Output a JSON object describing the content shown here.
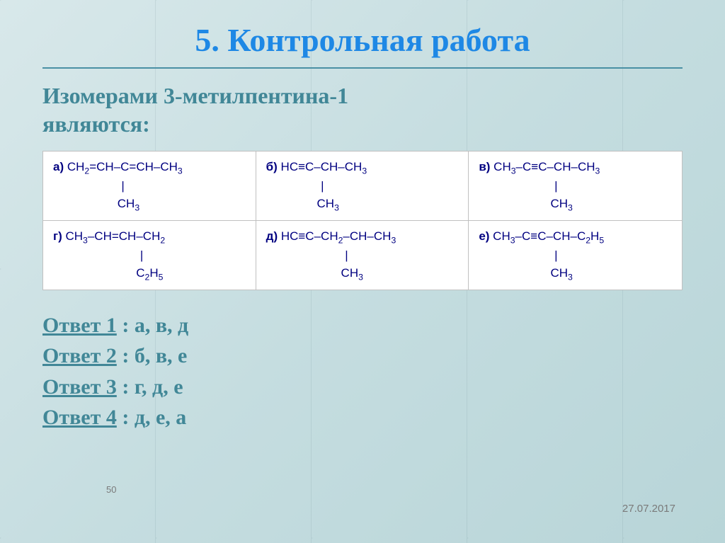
{
  "title": "5. Контрольная работа",
  "question_line1": "Изомерами 3-метилпентина-1",
  "question_line2": "являются:",
  "colors": {
    "title": "#1e88e5",
    "subtitle": "#418797",
    "formula_text": "#000080",
    "rule": "#4a90a4",
    "box_border": "#c0c0c0",
    "box_bg": "#ffffff",
    "meta": "#7a7a7a",
    "bg_gradient": [
      "#d8e8ea",
      "#c5dde0",
      "#b8d5d8"
    ]
  },
  "fonts": {
    "title_size_pt": 34,
    "subtitle_size_pt": 24,
    "answers_size_pt": 22,
    "formula_size_pt": 13,
    "main": "Comic Sans MS",
    "formula": "Arial"
  },
  "formulas": {
    "a": {
      "label": "а)",
      "main": "CH₂=CH–C=CH–CH₃",
      "sub_indent_ch": 13,
      "sub": "CH₃"
    },
    "b": {
      "label": "б)",
      "main": "HC≡C–CH–CH₃",
      "sub_indent_ch": 10,
      "sub": "CH₃"
    },
    "c": {
      "label": "в)",
      "main": "CH₃–C≡C–CH–CH₃",
      "sub_indent_ch": 14,
      "sub": "CH₃"
    },
    "d": {
      "label": "г)",
      "main": "CH₃–CH=CH–CH₂",
      "sub_indent_ch": 16,
      "sub": "C₂H₅"
    },
    "e": {
      "label": "д)",
      "main": "HC≡C–CH₂–CH–CH₃",
      "sub_indent_ch": 15,
      "sub": "CH₃"
    },
    "f": {
      "label": "е)",
      "main": "CH₃–C≡C–CH–C₂H₅",
      "sub_indent_ch": 14,
      "sub": "CH₃"
    }
  },
  "answers": [
    {
      "label": "Ответ 1",
      "value": " : а, в, д"
    },
    {
      "label": "Ответ 2",
      "value": " : б, в, е"
    },
    {
      "label": "Ответ 3",
      "value": " : г, д, е"
    },
    {
      "label": "Ответ 4",
      "value": " : д, е, а"
    }
  ],
  "slide_number": "50",
  "date": "27.07.2017"
}
